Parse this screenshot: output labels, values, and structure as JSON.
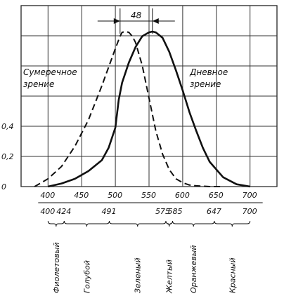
{
  "chart_data": {
    "type": "line",
    "xlim": [
      360,
      740
    ],
    "ylim": [
      0,
      1.0
    ],
    "grid": true,
    "y_ticks": [
      {
        "value": 0,
        "label": "0"
      },
      {
        "value": 0.2,
        "label": "0,2"
      },
      {
        "value": 0.4,
        "label": "0,4"
      }
    ],
    "x_ticks": [
      {
        "value": 400,
        "label": "400"
      },
      {
        "value": 450,
        "label": "450"
      },
      {
        "value": 500,
        "label": "500"
      },
      {
        "value": 550,
        "label": "550"
      },
      {
        "value": 600,
        "label": "600"
      },
      {
        "value": 650,
        "label": "650"
      },
      {
        "value": 700,
        "label": "700"
      }
    ],
    "boundary_ticks": [
      {
        "value": 400,
        "label": "400"
      },
      {
        "value": 424,
        "label": "424"
      },
      {
        "value": 491,
        "label": "491"
      },
      {
        "value": 575,
        "label": "575"
      },
      {
        "value": 585,
        "label": "585"
      },
      {
        "value": 647,
        "label": "647"
      },
      {
        "value": 700,
        "label": "700"
      }
    ],
    "color_bands": [
      {
        "label": "Фиолетовый",
        "from": 400,
        "to": 424
      },
      {
        "label": "Голубой",
        "from": 424,
        "to": 491
      },
      {
        "label": "Зеленый",
        "from": 491,
        "to": 575
      },
      {
        "label": "Желтый",
        "from": 575,
        "to": 585
      },
      {
        "label": "Оранжевый",
        "from": 585,
        "to": 647
      },
      {
        "label": "Красный",
        "from": 647,
        "to": 700
      }
    ],
    "series": [
      {
        "name": "Сумеречное зрение",
        "style": "dashed",
        "x": [
          380,
          400,
          420,
          440,
          460,
          480,
          490,
          500,
          507,
          510,
          515,
          520,
          525,
          530,
          540,
          550,
          560,
          570,
          580,
          590,
          600,
          610,
          620,
          640,
          660
        ],
        "y": [
          0.0,
          0.05,
          0.13,
          0.26,
          0.43,
          0.65,
          0.77,
          0.89,
          0.97,
          0.995,
          1.0,
          0.995,
          0.97,
          0.93,
          0.78,
          0.57,
          0.36,
          0.21,
          0.11,
          0.05,
          0.025,
          0.01,
          0.005,
          0.0,
          0.0
        ]
      },
      {
        "name": "Дневное зрение",
        "style": "solid",
        "x": [
          400,
          420,
          440,
          460,
          480,
          490,
          500,
          505,
          510,
          520,
          530,
          540,
          550,
          555,
          560,
          570,
          580,
          590,
          600,
          610,
          620,
          630,
          640,
          660,
          680,
          700
        ],
        "y": [
          0.0,
          0.02,
          0.05,
          0.1,
          0.17,
          0.25,
          0.38,
          0.56,
          0.67,
          0.8,
          0.9,
          0.97,
          0.995,
          1.0,
          0.995,
          0.96,
          0.87,
          0.75,
          0.62,
          0.48,
          0.36,
          0.25,
          0.16,
          0.06,
          0.015,
          0.0
        ]
      }
    ],
    "annotations": [
      {
        "text": "48",
        "type": "shift",
        "from": 507,
        "to": 555
      }
    ],
    "labels": {
      "scotopic_line1": "Сумеречное",
      "scotopic_line2": "зрение",
      "photopic_line1": "Дневное",
      "photopic_line2": "зрение"
    }
  }
}
